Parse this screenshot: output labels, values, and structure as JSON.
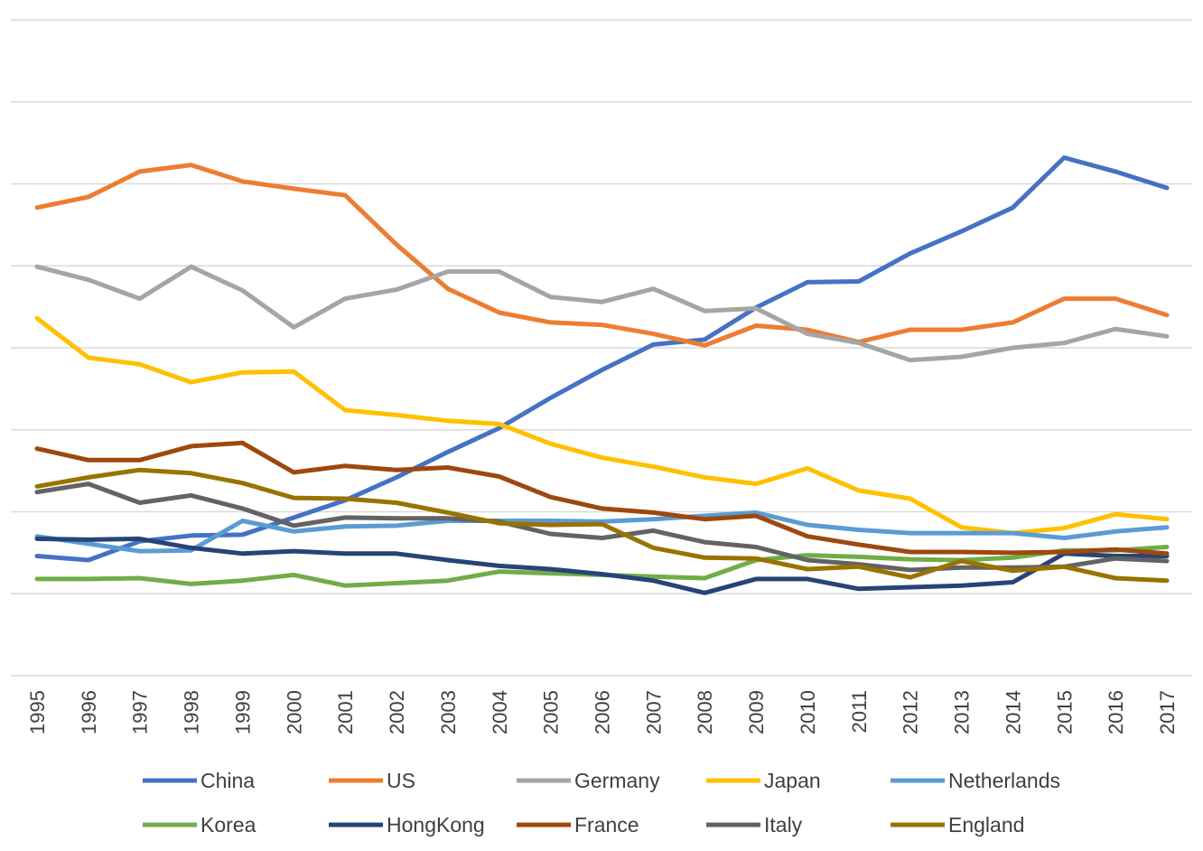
{
  "chart_data": {
    "type": "line",
    "title": "",
    "xlabel": "",
    "ylabel": "",
    "x": [
      "1995",
      "1996",
      "1997",
      "1998",
      "1999",
      "2000",
      "2001",
      "2002",
      "2003",
      "2004",
      "2005",
      "2006",
      "2007",
      "2008",
      "2009",
      "2010",
      "2011",
      "2012",
      "2013",
      "2014",
      "2015",
      "2016",
      "2017"
    ],
    "ylim": [
      0,
      8
    ],
    "gridlines": 8,
    "y_tick_labels_visible": false,
    "legend_position": "bottom",
    "series": [
      {
        "name": "China",
        "color": "#4472c4",
        "values": [
          1.46,
          1.41,
          1.64,
          1.71,
          1.72,
          1.93,
          2.14,
          2.42,
          2.73,
          3.02,
          3.39,
          3.73,
          4.04,
          4.1,
          4.49,
          4.8,
          4.81,
          5.15,
          5.42,
          5.71,
          6.32,
          6.15,
          5.95
        ]
      },
      {
        "name": "US",
        "color": "#ed7d31",
        "values": [
          5.71,
          5.84,
          6.15,
          6.23,
          6.03,
          5.94,
          5.86,
          5.26,
          4.72,
          4.43,
          4.31,
          4.28,
          4.17,
          4.03,
          4.27,
          4.22,
          4.07,
          4.22,
          4.22,
          4.31,
          4.6,
          4.6,
          4.4
        ]
      },
      {
        "name": "Germany",
        "color": "#a5a5a5",
        "values": [
          4.99,
          4.83,
          4.6,
          4.99,
          4.7,
          4.25,
          4.6,
          4.71,
          4.93,
          4.93,
          4.62,
          4.56,
          4.72,
          4.45,
          4.48,
          4.17,
          4.06,
          3.85,
          3.89,
          4.0,
          4.06,
          4.23,
          4.14
        ]
      },
      {
        "name": "Japan",
        "color": "#ffc000",
        "values": [
          4.36,
          3.88,
          3.8,
          3.58,
          3.7,
          3.71,
          3.24,
          3.18,
          3.11,
          3.07,
          2.83,
          2.66,
          2.55,
          2.42,
          2.34,
          2.53,
          2.26,
          2.16,
          1.81,
          1.74,
          1.8,
          1.97,
          1.91
        ]
      },
      {
        "name": "Netherlands",
        "color": "#5b9bd5",
        "values": [
          1.7,
          1.61,
          1.52,
          1.53,
          1.89,
          1.76,
          1.82,
          1.83,
          1.89,
          1.89,
          1.89,
          1.88,
          1.91,
          1.95,
          1.99,
          1.84,
          1.78,
          1.74,
          1.74,
          1.74,
          1.68,
          1.76,
          1.81
        ]
      },
      {
        "name": "Korea",
        "color": "#70ad47",
        "values": [
          1.18,
          1.18,
          1.19,
          1.12,
          1.16,
          1.23,
          1.1,
          1.13,
          1.16,
          1.27,
          1.25,
          1.23,
          1.21,
          1.19,
          1.41,
          1.47,
          1.45,
          1.42,
          1.41,
          1.44,
          1.53,
          1.53,
          1.57
        ]
      },
      {
        "name": "HongKong",
        "color": "#264478",
        "values": [
          1.67,
          1.66,
          1.67,
          1.56,
          1.49,
          1.52,
          1.49,
          1.49,
          1.41,
          1.34,
          1.3,
          1.24,
          1.16,
          1.01,
          1.18,
          1.18,
          1.06,
          1.08,
          1.1,
          1.14,
          1.49,
          1.46,
          1.46
        ]
      },
      {
        "name": "France",
        "color": "#9e480e",
        "values": [
          2.77,
          2.63,
          2.63,
          2.8,
          2.84,
          2.48,
          2.56,
          2.51,
          2.54,
          2.43,
          2.18,
          2.04,
          1.99,
          1.91,
          1.95,
          1.7,
          1.6,
          1.51,
          1.51,
          1.5,
          1.51,
          1.54,
          1.49
        ]
      },
      {
        "name": "Italy",
        "color": "#636363",
        "values": [
          2.24,
          2.34,
          2.11,
          2.2,
          2.04,
          1.83,
          1.93,
          1.92,
          1.92,
          1.88,
          1.73,
          1.68,
          1.77,
          1.63,
          1.57,
          1.41,
          1.36,
          1.29,
          1.32,
          1.32,
          1.33,
          1.43,
          1.4
        ]
      },
      {
        "name": "England",
        "color": "#997300",
        "values": [
          2.31,
          2.42,
          2.51,
          2.47,
          2.35,
          2.17,
          2.16,
          2.11,
          1.99,
          1.86,
          1.84,
          1.85,
          1.56,
          1.44,
          1.43,
          1.3,
          1.33,
          1.2,
          1.4,
          1.28,
          1.33,
          1.19,
          1.16
        ]
      }
    ]
  }
}
